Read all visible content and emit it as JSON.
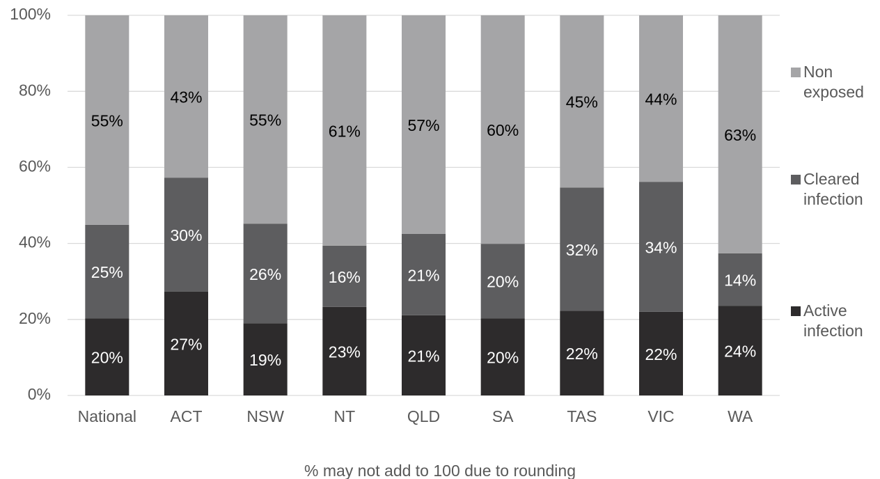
{
  "chart_data": {
    "type": "stacked_bar",
    "categories": [
      "National",
      "ACT",
      "NSW",
      "NT",
      "QLD",
      "SA",
      "TAS",
      "VIC",
      "WA"
    ],
    "series": [
      {
        "name": "Active infection",
        "color": "#2d2b2c",
        "label_color": "#ffffff",
        "values": [
          20.3,
          27.3,
          19.0,
          23.3,
          21.1,
          20.3,
          22.3,
          22.0,
          23.6
        ],
        "value_labels": [
          "20%",
          "27%",
          "19%",
          "23%",
          "21%",
          "20%",
          "22%",
          "22%",
          "24%"
        ]
      },
      {
        "name": "Cleared infection",
        "color": "#5d5d5f",
        "label_color": "#ffffff",
        "values": [
          24.6,
          30.0,
          26.2,
          16.1,
          21.4,
          19.6,
          32.4,
          34.2,
          13.8
        ],
        "value_labels": [
          "25%",
          "30%",
          "26%",
          "16%",
          "21%",
          "20%",
          "32%",
          "34%",
          "14%"
        ]
      },
      {
        "name": "Non exposed",
        "color": "#a5a5a7",
        "label_color": "#000000",
        "values": [
          55.1,
          42.7,
          54.8,
          60.6,
          57.5,
          60.1,
          45.3,
          43.8,
          62.6
        ],
        "value_labels": [
          "55%",
          "43%",
          "55%",
          "61%",
          "57%",
          "60%",
          "45%",
          "44%",
          "63%"
        ]
      }
    ],
    "ylim": [
      0,
      100
    ],
    "yticks": [
      {
        "value": 0,
        "label": "0%"
      },
      {
        "value": 20,
        "label": "20%"
      },
      {
        "value": 40,
        "label": "40%"
      },
      {
        "value": 60,
        "label": "60%"
      },
      {
        "value": 80,
        "label": "80%"
      },
      {
        "value": 100,
        "label": "100%"
      }
    ],
    "grid": true,
    "legend": "right",
    "note": "% may not add to 100 due to rounding"
  }
}
